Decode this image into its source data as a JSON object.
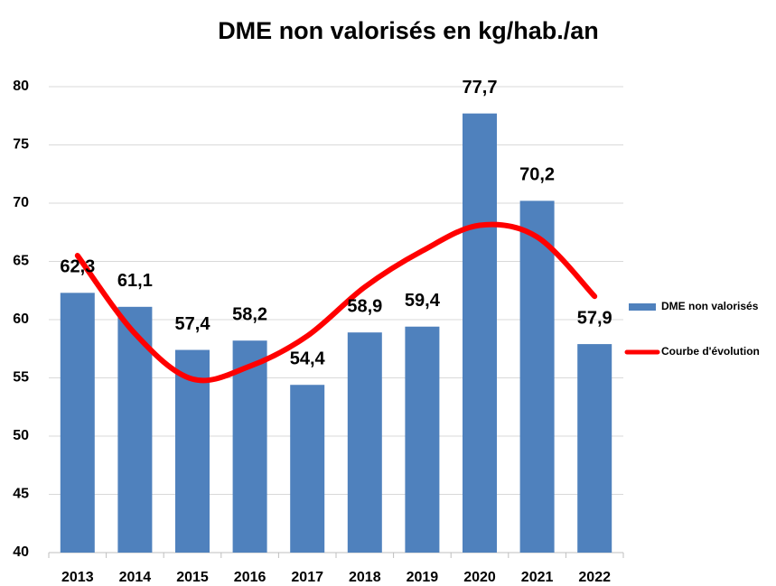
{
  "chart_data": {
    "type": "bar_line",
    "title": "DME non valorisés en kg/hab./an",
    "categories": [
      "2013",
      "2014",
      "2015",
      "2016",
      "2017",
      "2018",
      "2019",
      "2020",
      "2021",
      "2022"
    ],
    "series": [
      {
        "name": "DME non valorisés",
        "type": "bar",
        "color": "#4f81bd",
        "values": [
          62.3,
          61.1,
          57.4,
          58.2,
          54.4,
          58.9,
          59.4,
          77.7,
          70.2,
          57.9
        ],
        "value_labels": [
          "62,3",
          "61,1",
          "57,4",
          "58,2",
          "54,4",
          "58,9",
          "59,4",
          "77,7",
          "70,2",
          "57,9"
        ]
      },
      {
        "name": "Courbe d'évolution",
        "type": "line",
        "color": "#ff0000",
        "values": [
          65.5,
          58.8,
          54.9,
          56,
          58.6,
          62.8,
          65.9,
          68.1,
          67.1,
          62
        ]
      }
    ],
    "ylim": [
      40,
      80
    ],
    "yticks": [
      40,
      45,
      50,
      55,
      60,
      65,
      70,
      75,
      80
    ],
    "grid": true,
    "legend": "right"
  }
}
